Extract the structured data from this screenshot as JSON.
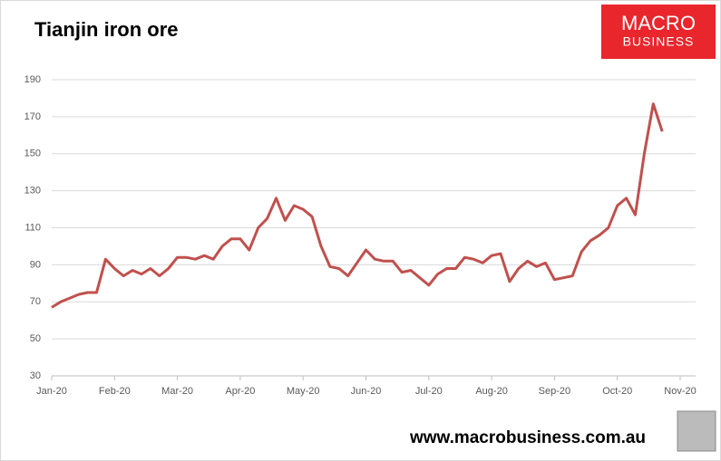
{
  "chart_data": {
    "type": "line",
    "title": "Tianjin iron ore",
    "categories": [
      "Jan-20",
      null,
      null,
      null,
      null,
      null,
      null,
      "Feb-20",
      null,
      null,
      null,
      null,
      null,
      null,
      "Mar-20",
      null,
      null,
      null,
      null,
      null,
      null,
      "Apr-20",
      null,
      null,
      null,
      null,
      null,
      null,
      "May-20",
      null,
      null,
      null,
      null,
      null,
      null,
      "Jun-20",
      null,
      null,
      null,
      null,
      null,
      null,
      "Jul-20",
      null,
      null,
      null,
      null,
      null,
      null,
      "Aug-20",
      null,
      null,
      null,
      null,
      null,
      null,
      "Sep-20",
      null,
      null,
      null,
      null,
      null,
      null,
      "Oct-20",
      null,
      null,
      null,
      null,
      null,
      null,
      "Nov-20"
    ],
    "values": [
      67,
      70,
      72,
      74,
      75,
      75,
      93,
      88,
      84,
      87,
      85,
      88,
      84,
      88,
      94,
      94,
      93,
      95,
      93,
      100,
      104,
      104,
      98,
      110,
      115,
      126,
      114,
      122,
      120,
      116,
      100,
      89,
      88,
      84,
      91,
      98,
      93,
      92,
      92,
      86,
      87,
      83,
      79,
      85,
      88,
      88,
      94,
      93,
      91,
      95,
      96,
      81,
      88,
      92,
      89,
      91,
      82,
      83,
      84,
      97,
      103,
      106,
      110,
      122,
      126,
      117,
      150,
      177,
      162,
      null,
      null
    ],
    "color": "#c0504d",
    "ylim": [
      30,
      190
    ],
    "yticks": [
      30,
      50,
      70,
      90,
      110,
      130,
      150,
      170,
      190
    ],
    "grid": true
  },
  "logo": {
    "line1": "MACRO",
    "line2": "BUSINESS"
  },
  "footer": {
    "url": "www.macrobusiness.com.au"
  }
}
